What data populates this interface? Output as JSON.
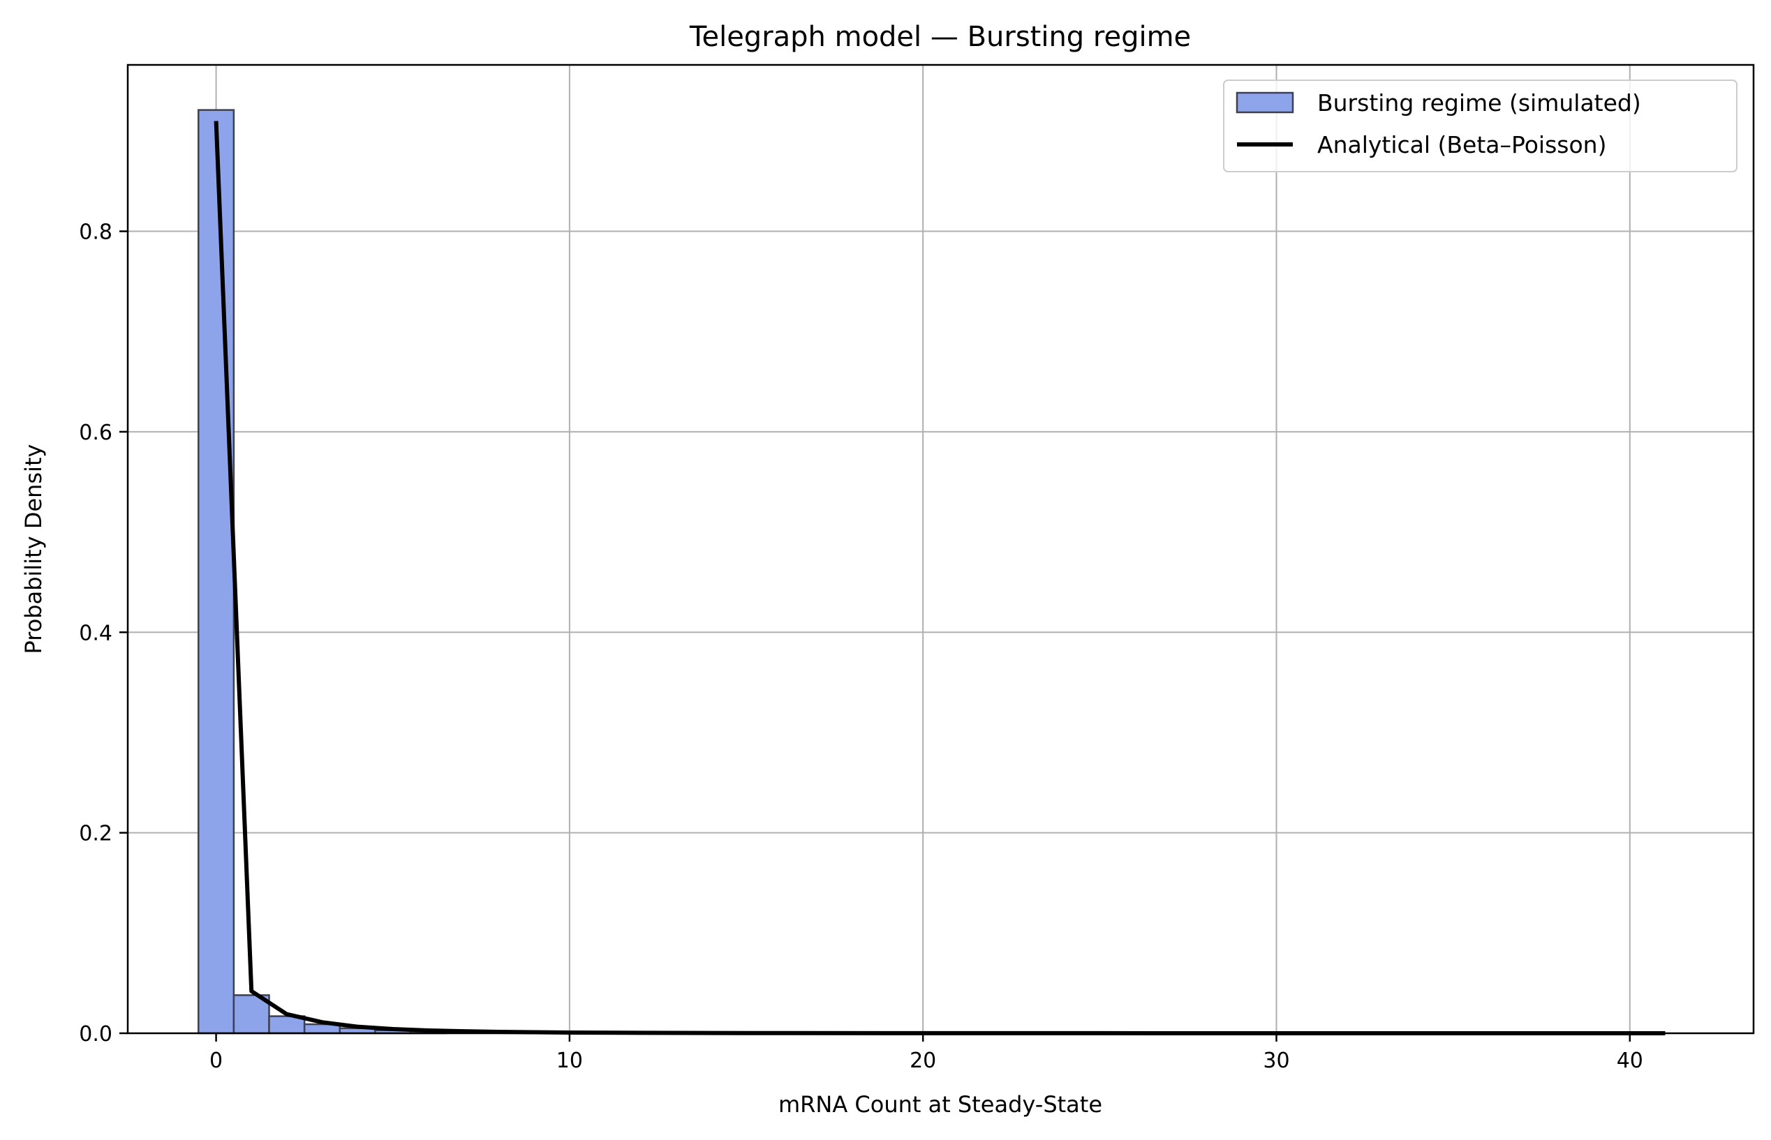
{
  "chart_data": {
    "type": "bar",
    "title": "Telegraph model — Bursting regime",
    "xlabel": "mRNA Count at Steady-State",
    "ylabel": "Probability Density",
    "xlim": [
      -2.5,
      43.5
    ],
    "ylim": [
      0,
      0.966
    ],
    "xticks": [
      0,
      10,
      20,
      30,
      40
    ],
    "xtick_labels": [
      "0",
      "10",
      "20",
      "30",
      "40"
    ],
    "yticks": [
      0.0,
      0.2,
      0.4,
      0.6,
      0.8
    ],
    "ytick_labels": [
      "0.0",
      "0.2",
      "0.4",
      "0.6",
      "0.8"
    ],
    "grid": true,
    "legend_position": "top-right",
    "histogram": {
      "name": "Bursting regime (simulated)",
      "color": "#8ea4ea",
      "edge_color": "#3d3f52",
      "bin_edges": [
        -0.5,
        0.5,
        1.5,
        2.5,
        3.5,
        4.5,
        5.5,
        6.5
      ],
      "values": [
        0.921,
        0.038,
        0.017,
        0.009,
        0.005,
        0.003,
        0.002
      ]
    },
    "line": {
      "name": "Analytical (Beta–Poisson)",
      "color": "#000000",
      "x": [
        0,
        1,
        2,
        3,
        4,
        5,
        6,
        7,
        8,
        9,
        10,
        12,
        15,
        20,
        25,
        30,
        35,
        41
      ],
      "values": [
        0.91,
        0.042,
        0.019,
        0.011,
        0.0065,
        0.0042,
        0.0028,
        0.002,
        0.0014,
        0.001,
        0.0007,
        0.0004,
        0.0002,
        0.0001,
        5e-05,
        3e-05,
        2e-05,
        1e-05
      ]
    }
  }
}
